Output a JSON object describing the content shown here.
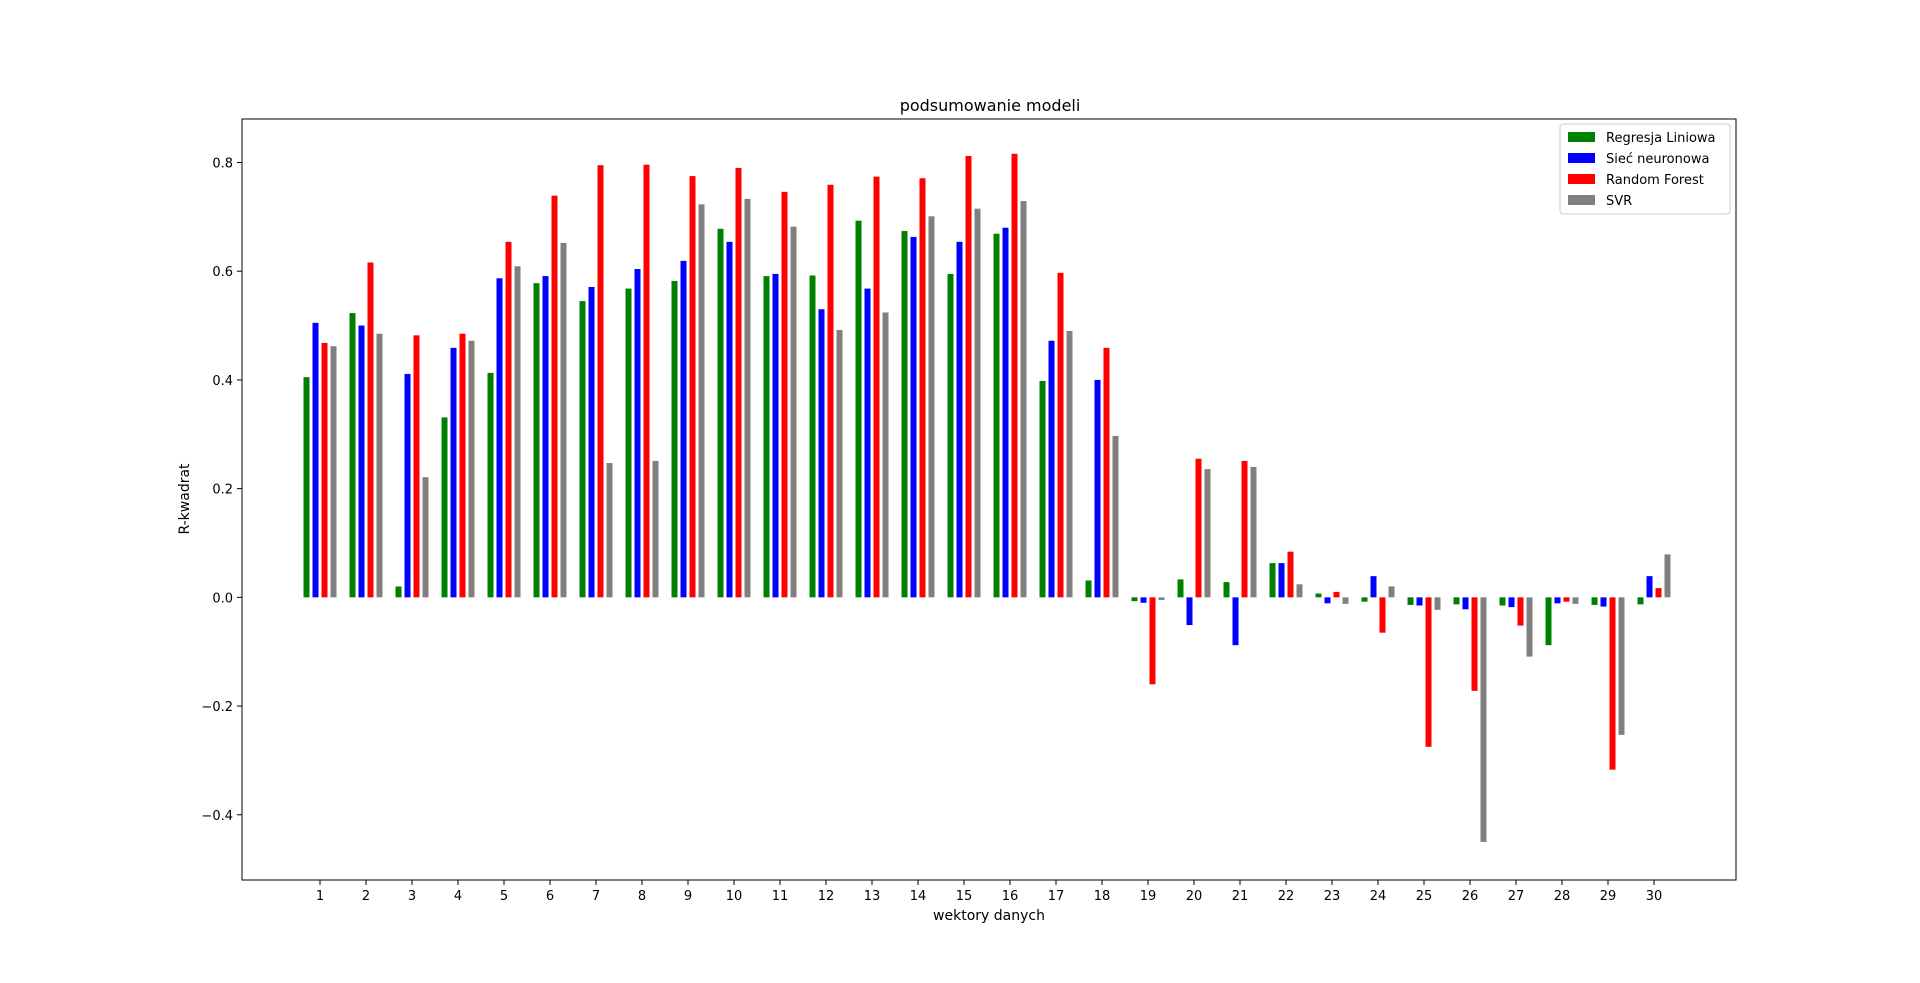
{
  "chart_data": {
    "type": "bar",
    "title": "podsumowanie modeli",
    "xlabel": "wektory danych",
    "ylabel": "R-kwadrat",
    "categories": [
      "1",
      "2",
      "3",
      "4",
      "5",
      "6",
      "7",
      "8",
      "9",
      "10",
      "11",
      "12",
      "13",
      "14",
      "15",
      "16",
      "17",
      "18",
      "19",
      "20",
      "21",
      "22",
      "23",
      "24",
      "25",
      "26",
      "27",
      "28",
      "29",
      "30"
    ],
    "ylim": [
      -0.52,
      0.88
    ],
    "yticks": [
      -0.4,
      -0.2,
      0.0,
      0.2,
      0.4,
      0.6,
      0.8
    ],
    "ytick_labels": [
      "−0.4",
      "−0.2",
      "0.0",
      "0.2",
      "0.4",
      "0.6",
      "0.8"
    ],
    "grid": false,
    "legend_position": "top-right",
    "series": [
      {
        "name": "Regresja Liniowa",
        "color": "#008000",
        "values": [
          0.405,
          0.523,
          0.02,
          0.331,
          0.413,
          0.578,
          0.545,
          0.568,
          0.582,
          0.678,
          0.591,
          0.592,
          0.693,
          0.674,
          0.595,
          0.669,
          0.398,
          0.031,
          -0.007,
          0.033,
          0.028,
          0.063,
          0.007,
          -0.008,
          -0.014,
          -0.013,
          -0.015,
          -0.088,
          -0.014,
          -0.013
        ]
      },
      {
        "name": "Sieć neuronowa",
        "color": "#0000ff",
        "values": [
          0.505,
          0.5,
          0.411,
          0.459,
          0.587,
          0.591,
          0.571,
          0.604,
          0.619,
          0.654,
          0.595,
          0.53,
          0.568,
          0.663,
          0.654,
          0.68,
          0.472,
          0.4,
          -0.01,
          -0.051,
          -0.088,
          0.063,
          -0.011,
          0.039,
          -0.015,
          -0.022,
          -0.018,
          -0.011,
          -0.017,
          0.039
        ]
      },
      {
        "name": "Random Forest",
        "color": "#ff0000",
        "values": [
          0.468,
          0.616,
          0.482,
          0.485,
          0.654,
          0.739,
          0.795,
          0.796,
          0.775,
          0.79,
          0.746,
          0.759,
          0.774,
          0.771,
          0.812,
          0.816,
          0.597,
          0.459,
          -0.16,
          0.255,
          0.251,
          0.084,
          0.01,
          -0.065,
          -0.275,
          -0.172,
          -0.052,
          -0.008,
          -0.317,
          0.017
        ]
      },
      {
        "name": "SVR",
        "color": "#808080",
        "values": [
          0.462,
          0.485,
          0.221,
          0.472,
          0.609,
          0.652,
          0.247,
          0.251,
          0.723,
          0.733,
          0.682,
          0.492,
          0.524,
          0.701,
          0.715,
          0.729,
          0.49,
          0.297,
          -0.005,
          0.236,
          0.24,
          0.024,
          -0.012,
          0.02,
          -0.023,
          -0.45,
          -0.109,
          -0.012,
          -0.253,
          0.079
        ]
      }
    ]
  }
}
